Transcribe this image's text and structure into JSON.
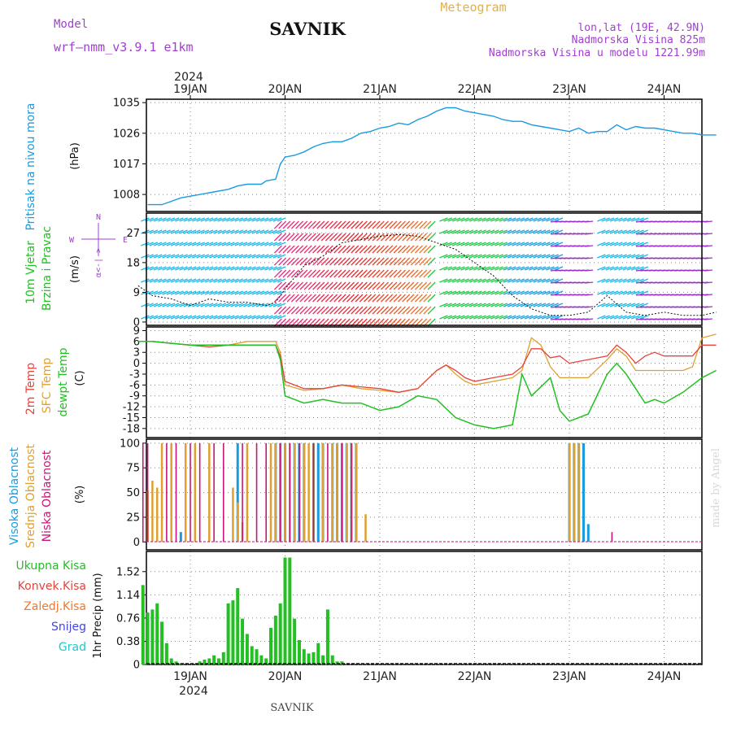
{
  "header": {
    "model_label": "Model",
    "model_name": "wrf—nmm_v3.9.1 e1km",
    "title": "SAVNIK",
    "subtitle": "Meteogram",
    "location": "lon,lat (19E, 42.9N)",
    "elevation": "Nadmorska Visina 825m",
    "model_elevation": "Nadmorska Visina u modelu 1221.99m"
  },
  "footer": {
    "station": "SAVNIK",
    "credit": "made by Angel"
  },
  "colors": {
    "pressure": "#1a9be0",
    "temp2m": "#e8423a",
    "sfc_temp": "#e0a030",
    "dewpt": "#22c022",
    "high_cloud": "#1a9be0",
    "mid_cloud": "#e0a030",
    "low_cloud": "#c8157a",
    "total_precip": "#22c022",
    "conv_precip": "#e8423a",
    "zaledj": "#f07830",
    "snow": "#4545e0",
    "grad": "#20c8c8",
    "wind_title": "#22c022",
    "wind_compass": "#a040d0"
  },
  "axes": {
    "year": "2024",
    "date_ticks": [
      "19JAN",
      "20JAN",
      "21JAN",
      "22JAN",
      "23JAN",
      "24JAN"
    ]
  },
  "panels": {
    "pressure": {
      "label": "Pritisak na nivou mora",
      "unit": "(hPa)",
      "ticks": [
        "1035",
        "1026",
        "1017",
        "1008"
      ]
    },
    "wind": {
      "label1": "10m Vjetar",
      "label2": "Brzina i Pravac",
      "unit": "(m/s)",
      "ticks": [
        "27",
        "18",
        "9",
        "0"
      ],
      "compass": {
        "n": "N",
        "w": "W",
        "e": "E",
        "s": "α<-|->"
      }
    },
    "temp": {
      "label1": "2m Temp",
      "label2": "SFC Temp",
      "label3": "dewpt Temp",
      "unit": "(C)",
      "ticks": [
        "9",
        "6",
        "3",
        "0",
        "-3",
        "-6",
        "-9",
        "-12",
        "-15",
        "-18"
      ]
    },
    "clouds": {
      "label1": "Visoka Oblacnost",
      "label2": "Srednja Oblacnost",
      "label3": "Niska Oblacnost",
      "unit": "(%)",
      "ticks": [
        "100",
        "75",
        "50",
        "25",
        "0"
      ]
    },
    "precip": {
      "legend": [
        "Ukupna Kisa",
        "Konvek.Kisa",
        "Zaledj.Kisa",
        "Snijeg",
        "Grad"
      ],
      "unit": "1hr Precip (mm)",
      "ticks": [
        "1.52",
        "1.14",
        "0.76",
        "0.38",
        "0"
      ]
    }
  },
  "chart_data": [
    {
      "type": "line",
      "title": "Pritisak na nivou mora",
      "ylabel": "(hPa)",
      "ylim": [
        1003,
        1036
      ],
      "x_unit": "days from 19JAN 00UTC",
      "series": [
        {
          "name": "Pritisak na nivou mora",
          "x": [
            -0.45,
            -0.3,
            -0.2,
            -0.1,
            0,
            0.2,
            0.4,
            0.5,
            0.6,
            0.75,
            0.8,
            0.9,
            0.95,
            1.0,
            1.1,
            1.2,
            1.3,
            1.4,
            1.5,
            1.6,
            1.7,
            1.8,
            1.9,
            2.0,
            2.1,
            2.2,
            2.3,
            2.4,
            2.5,
            2.6,
            2.7,
            2.8,
            2.9,
            3.0,
            3.1,
            3.2,
            3.3,
            3.4,
            3.5,
            3.6,
            3.7,
            3.8,
            3.9,
            4.0,
            4.1,
            4.2,
            4.3,
            4.4,
            4.5,
            4.6,
            4.7,
            4.8,
            4.9,
            5.0,
            5.1,
            5.2,
            5.3,
            5.4,
            5.55
          ],
          "y": [
            1005,
            1005,
            1006,
            1007,
            1007.5,
            1008.5,
            1009.5,
            1010.5,
            1011,
            1011,
            1012,
            1012.5,
            1017,
            1019,
            1019.5,
            1020.5,
            1022,
            1023,
            1023.5,
            1023.5,
            1024.5,
            1026,
            1026.5,
            1027.5,
            1028,
            1029,
            1028.5,
            1030,
            1031,
            1032.5,
            1033.5,
            1033.5,
            1032.5,
            1032,
            1031.5,
            1031,
            1030,
            1029.5,
            1029.5,
            1028.5,
            1028,
            1027.5,
            1027,
            1026.5,
            1027.5,
            1026,
            1026.5,
            1026.5,
            1028.5,
            1027,
            1028,
            1027.5,
            1027.5,
            1027,
            1026.5,
            1026,
            1026,
            1025.5,
            1025.5
          ]
        }
      ]
    },
    {
      "type": "line",
      "title": "10m Vjetar Brzina i Pravac",
      "ylabel": "(m/s)",
      "ylim": [
        -1,
        33
      ],
      "x_unit": "days from 19JAN 00UTC",
      "series": [
        {
          "name": "Brzina",
          "x": [
            -0.55,
            -0.4,
            -0.2,
            0,
            0.2,
            0.4,
            0.6,
            0.8,
            0.9,
            1.0,
            1.2,
            1.4,
            1.6,
            1.8,
            2.0,
            2.2,
            2.4,
            2.6,
            2.8,
            3.0,
            3.2,
            3.4,
            3.6,
            3.8,
            4.0,
            4.2,
            4.4,
            4.6,
            4.8,
            5.0,
            5.2,
            5.4,
            5.55
          ],
          "y": [
            11,
            8,
            7,
            5,
            7,
            6,
            6,
            5,
            6,
            10,
            17,
            20,
            24,
            25,
            26,
            26.5,
            26,
            24,
            22,
            18,
            14,
            8,
            4,
            2,
            2,
            3,
            8,
            3,
            2,
            3,
            2,
            2,
            3
          ]
        }
      ]
    },
    {
      "type": "line",
      "title": "2m Temp / SFC Temp / dewpt Temp",
      "ylabel": "(C)",
      "ylim": [
        -20.5,
        10
      ],
      "x_unit": "days from 19JAN 00UTC",
      "series": [
        {
          "name": "2m Temp",
          "x": [
            -0.55,
            -0.4,
            -0.2,
            0,
            0.2,
            0.4,
            0.6,
            0.8,
            0.9,
            0.95,
            1.0,
            1.2,
            1.4,
            1.6,
            1.8,
            2.0,
            2.2,
            2.4,
            2.6,
            2.7,
            2.8,
            2.9,
            3.0,
            3.2,
            3.4,
            3.5,
            3.6,
            3.7,
            3.8,
            3.9,
            4.0,
            4.2,
            4.4,
            4.5,
            4.6,
            4.7,
            4.8,
            4.9,
            5.0,
            5.1,
            5.2,
            5.3,
            5.4,
            5.55
          ],
          "y": [
            6,
            6,
            5.5,
            5,
            4.5,
            5,
            5,
            5,
            5,
            2,
            -5,
            -7,
            -7,
            -6,
            -6.5,
            -7,
            -8,
            -7,
            -2,
            -0.5,
            -2,
            -4,
            -5,
            -4,
            -3,
            -1,
            4,
            4,
            1.5,
            2,
            0,
            1,
            2,
            5,
            3,
            0,
            2,
            3,
            2,
            2,
            2,
            2,
            5,
            5
          ]
        },
        {
          "name": "SFC Temp",
          "x": [
            -0.55,
            -0.4,
            -0.2,
            0,
            0.2,
            0.4,
            0.6,
            0.8,
            0.9,
            0.95,
            1.0,
            1.2,
            1.4,
            1.6,
            1.8,
            2.0,
            2.2,
            2.4,
            2.6,
            2.7,
            2.8,
            2.9,
            3.0,
            3.2,
            3.4,
            3.5,
            3.6,
            3.7,
            3.8,
            3.9,
            4.0,
            4.2,
            4.4,
            4.5,
            4.6,
            4.7,
            4.8,
            4.9,
            5.0,
            5.1,
            5.2,
            5.3,
            5.4,
            5.55
          ],
          "y": [
            6,
            6,
            5.5,
            5,
            4.5,
            5,
            6,
            6,
            6,
            3,
            -6,
            -7.5,
            -7,
            -6,
            -7,
            -7.5,
            -8,
            -7,
            -2,
            -0.5,
            -3,
            -5,
            -6,
            -5,
            -4,
            -2,
            7,
            5,
            -1,
            -4,
            -4,
            -4,
            1,
            4,
            2,
            -2,
            -2,
            -2,
            -2,
            -2,
            -2,
            -1,
            7,
            8
          ]
        },
        {
          "name": "dewpt Temp",
          "x": [
            -0.55,
            -0.4,
            -0.2,
            0,
            0.2,
            0.4,
            0.6,
            0.8,
            0.9,
            0.95,
            1.0,
            1.2,
            1.4,
            1.6,
            1.8,
            2.0,
            2.2,
            2.4,
            2.6,
            2.8,
            3.0,
            3.2,
            3.4,
            3.5,
            3.6,
            3.8,
            3.9,
            4.0,
            4.2,
            4.4,
            4.5,
            4.6,
            4.7,
            4.8,
            4.9,
            5.0,
            5.2,
            5.4,
            5.55
          ],
          "y": [
            6,
            6,
            5.5,
            5,
            5,
            5,
            5,
            5,
            5,
            1,
            -9,
            -11,
            -10,
            -11,
            -11,
            -13,
            -12,
            -9,
            -10,
            -15,
            -17,
            -18,
            -17,
            -3,
            -9,
            -4,
            -13,
            -16,
            -14,
            -3,
            0,
            -3,
            -7,
            -11,
            -10,
            -11,
            -8,
            -4,
            -2
          ]
        }
      ]
    },
    {
      "type": "bar",
      "title": "Visoka / Srednja / Niska Oblacnost",
      "ylabel": "(%)",
      "ylim": [
        0,
        100
      ],
      "x_unit": "days from 19JAN 00UTC",
      "series": [
        {
          "name": "Visoka Oblacnost",
          "x": [
            -0.1,
            0.5,
            0.9,
            0.95,
            1.0,
            1.1,
            1.15,
            1.2,
            1.3,
            1.35,
            1.4,
            1.5,
            1.55,
            1.6,
            1.65,
            1.7,
            1.75,
            4.0,
            4.05,
            4.1,
            4.15,
            4.2
          ],
          "y": [
            10,
            100,
            100,
            100,
            100,
            100,
            100,
            100,
            100,
            100,
            100,
            100,
            100,
            100,
            100,
            100,
            100,
            100,
            100,
            100,
            100,
            18
          ]
        },
        {
          "name": "Srednja Oblacnost",
          "x": [
            -0.45,
            -0.4,
            -0.35,
            -0.3,
            -0.2,
            -0.05,
            0.05,
            0.2,
            0.45,
            0.5,
            0.55,
            0.6,
            0.85,
            0.9,
            0.95,
            1.0,
            1.05,
            1.1,
            1.2,
            1.25,
            1.3,
            1.4,
            1.5,
            1.55,
            1.6,
            1.65,
            1.7,
            1.75,
            1.85,
            4.0,
            4.05,
            4.1
          ],
          "y": [
            52,
            62,
            55,
            100,
            100,
            100,
            100,
            100,
            55,
            40,
            20,
            100,
            100,
            100,
            100,
            100,
            100,
            100,
            100,
            100,
            100,
            100,
            100,
            100,
            100,
            100,
            100,
            100,
            28,
            100,
            100,
            100
          ]
        },
        {
          "name": "Niska Oblacnost",
          "x": [
            -0.5,
            -0.45,
            -0.25,
            -0.15,
            0.0,
            0.1,
            0.25,
            0.35,
            0.55,
            0.7,
            0.8,
            0.95,
            1.05,
            1.15,
            1.3,
            1.45,
            1.6,
            1.7,
            4.45
          ],
          "y": [
            100,
            100,
            100,
            100,
            100,
            100,
            100,
            100,
            100,
            100,
            100,
            100,
            100,
            100,
            100,
            100,
            100,
            100,
            10
          ]
        }
      ]
    },
    {
      "type": "bar",
      "title": "1hr Precip",
      "ylabel": "1hr Precip (mm)",
      "ylim": [
        0,
        1.85
      ],
      "x_unit": "days from 19JAN 00UTC",
      "series": [
        {
          "name": "Ukupna Kisa",
          "x": [
            -0.5,
            -0.45,
            -0.4,
            -0.35,
            -0.3,
            -0.25,
            -0.2,
            -0.15,
            -0.1,
            0.1,
            0.15,
            0.2,
            0.25,
            0.3,
            0.35,
            0.4,
            0.45,
            0.5,
            0.55,
            0.6,
            0.65,
            0.7,
            0.75,
            0.8,
            0.85,
            0.9,
            0.95,
            1.0,
            1.05,
            1.1,
            1.15,
            1.2,
            1.25,
            1.3,
            1.35,
            1.4,
            1.45,
            1.5,
            1.55,
            1.6
          ],
          "y": [
            1.3,
            0.85,
            0.9,
            1.0,
            0.7,
            0.35,
            0.1,
            0.05,
            0.02,
            0.05,
            0.08,
            0.1,
            0.15,
            0.1,
            0.2,
            1.0,
            1.05,
            1.25,
            0.75,
            0.5,
            0.3,
            0.25,
            0.15,
            0.1,
            0.6,
            0.8,
            1.0,
            1.75,
            1.75,
            0.75,
            0.4,
            0.25,
            0.18,
            0.2,
            0.35,
            0.15,
            0.9,
            0.15,
            0.05,
            0.05
          ]
        }
      ]
    }
  ]
}
